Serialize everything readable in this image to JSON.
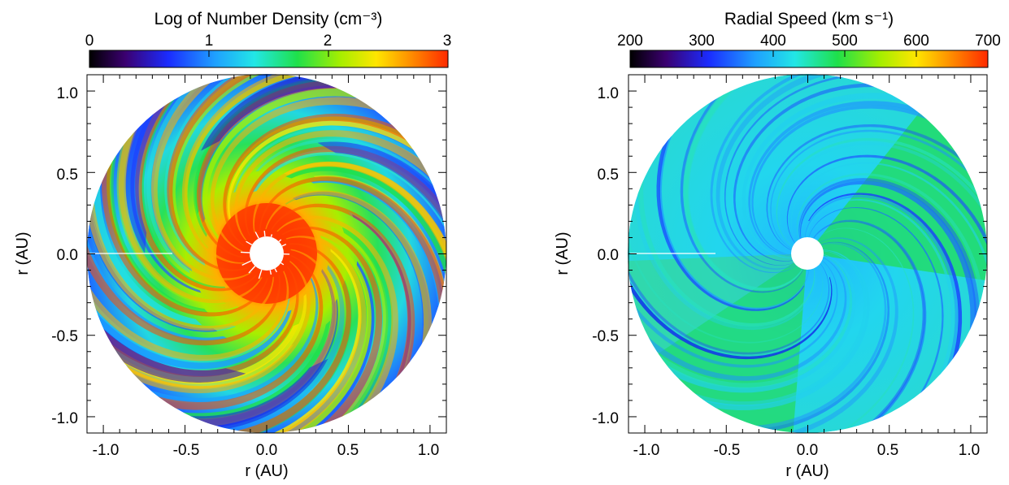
{
  "chart_data": [
    {
      "type": "heatmap",
      "projection": "polar-disk",
      "title": "Log of Number Density (cm⁻³)",
      "colorbar": {
        "ticks": [
          "0",
          "1",
          "2",
          "3"
        ],
        "range": [
          0,
          3
        ],
        "colormap": "rainbow",
        "colors": [
          "#000000",
          "#3b0070",
          "#1b2cff",
          "#1fa0ff",
          "#22e6e6",
          "#1fe04a",
          "#a6ee00",
          "#ffe600",
          "#ff8a00",
          "#ff2a00"
        ]
      },
      "xlabel": "r (AU)",
      "ylabel": "r (AU)",
      "xticks": [
        "-1.0",
        "-0.5",
        "0.0",
        "0.5",
        "1.0"
      ],
      "yticks": [
        "1.0",
        "0.5",
        "0.0",
        "-0.5",
        "-1.0"
      ],
      "xlim": [
        -1.1,
        1.1
      ],
      "ylim": [
        -1.1,
        1.1
      ],
      "disk_radius": 1.0,
      "inner_hole_radius": 0.1,
      "spiral_arms": 16,
      "value_near_center": 3,
      "value_at_edge": 0.9
    },
    {
      "type": "heatmap",
      "projection": "polar-disk",
      "title": "Radial Speed (km s⁻¹)",
      "colorbar": {
        "ticks": [
          "200",
          "300",
          "400",
          "500",
          "600",
          "700"
        ],
        "range": [
          200,
          700
        ],
        "colormap": "rainbow",
        "colors": [
          "#000000",
          "#3b0070",
          "#1b2cff",
          "#1fa0ff",
          "#22e6e6",
          "#1fe04a",
          "#a6ee00",
          "#ffe600",
          "#ff8a00",
          "#ff2a00"
        ]
      },
      "xlabel": "r (AU)",
      "ylabel": "r (AU)",
      "xticks": [
        "-1.0",
        "-0.5",
        "0.0",
        "0.5",
        "1.0"
      ],
      "yticks": [
        "1.0",
        "0.5",
        "0.0",
        "-0.5",
        "-1.0"
      ],
      "xlim": [
        -1.1,
        1.1
      ],
      "ylim": [
        -1.1,
        1.1
      ],
      "disk_radius": 1.0,
      "inner_hole_radius": 0.1,
      "spiral_arms": 14,
      "speed_range_shown": [
        380,
        500
      ]
    }
  ]
}
